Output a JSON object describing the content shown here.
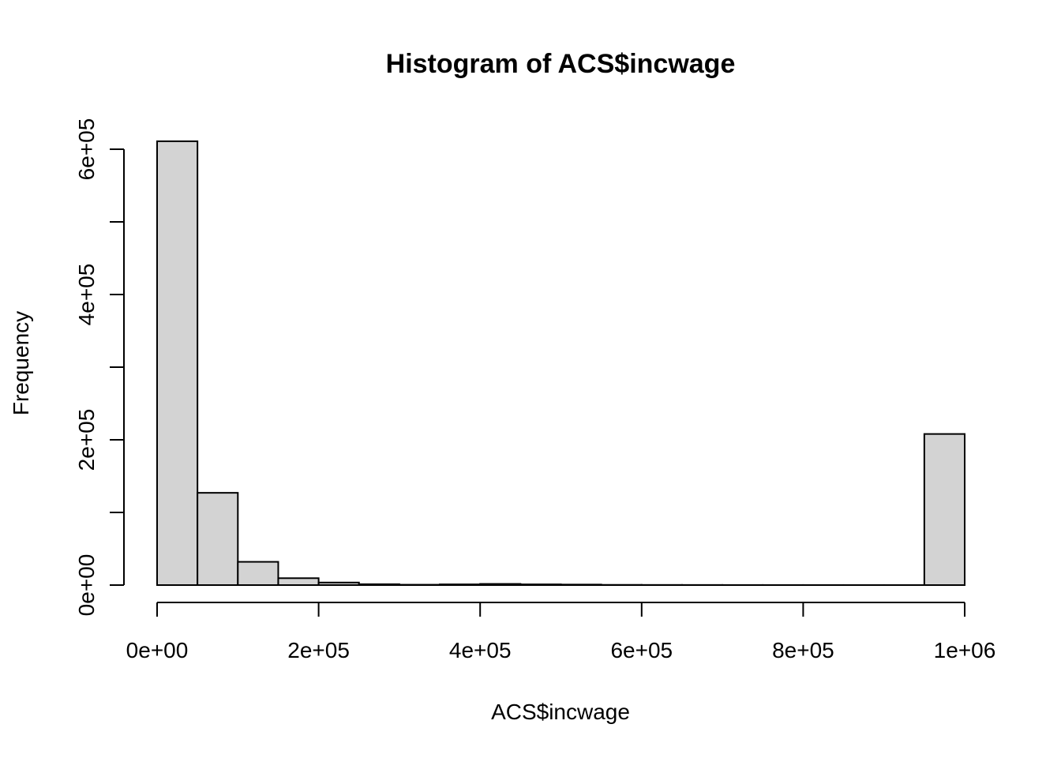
{
  "chart_data": {
    "type": "bar",
    "title": "Histogram of ACS$incwage",
    "xlabel": "ACS$incwage",
    "ylabel": "Frequency",
    "xlim": [
      0,
      1000000
    ],
    "ylim": [
      0,
      600000
    ],
    "bin_width": 50000,
    "x_ticks": [
      {
        "value": 0,
        "label": "0e+00"
      },
      {
        "value": 200000,
        "label": "2e+05"
      },
      {
        "value": 400000,
        "label": "4e+05"
      },
      {
        "value": 600000,
        "label": "6e+05"
      },
      {
        "value": 800000,
        "label": "8e+05"
      },
      {
        "value": 1000000,
        "label": "1e+06"
      }
    ],
    "y_ticks": [
      {
        "value": 0,
        "label": "0e+00"
      },
      {
        "value": 100000,
        "label": ""
      },
      {
        "value": 200000,
        "label": "2e+05"
      },
      {
        "value": 300000,
        "label": ""
      },
      {
        "value": 400000,
        "label": "4e+05"
      },
      {
        "value": 500000,
        "label": ""
      },
      {
        "value": 600000,
        "label": "6e+05"
      }
    ],
    "bins": [
      {
        "start": 0,
        "end": 50000,
        "count": 611000
      },
      {
        "start": 50000,
        "end": 100000,
        "count": 127000
      },
      {
        "start": 100000,
        "end": 150000,
        "count": 32000
      },
      {
        "start": 150000,
        "end": 200000,
        "count": 9500
      },
      {
        "start": 200000,
        "end": 250000,
        "count": 3500
      },
      {
        "start": 250000,
        "end": 300000,
        "count": 1200
      },
      {
        "start": 300000,
        "end": 350000,
        "count": 500
      },
      {
        "start": 350000,
        "end": 400000,
        "count": 1000
      },
      {
        "start": 400000,
        "end": 450000,
        "count": 1600
      },
      {
        "start": 450000,
        "end": 500000,
        "count": 1000
      },
      {
        "start": 500000,
        "end": 550000,
        "count": 700
      },
      {
        "start": 550000,
        "end": 600000,
        "count": 300
      },
      {
        "start": 600000,
        "end": 650000,
        "count": 200
      },
      {
        "start": 650000,
        "end": 700000,
        "count": 150
      },
      {
        "start": 700000,
        "end": 750000,
        "count": 100
      },
      {
        "start": 750000,
        "end": 800000,
        "count": 80
      },
      {
        "start": 800000,
        "end": 850000,
        "count": 60
      },
      {
        "start": 850000,
        "end": 900000,
        "count": 50
      },
      {
        "start": 900000,
        "end": 950000,
        "count": 40
      },
      {
        "start": 950000,
        "end": 1000000,
        "count": 208000
      }
    ],
    "bar_fill": "#d3d3d3",
    "bar_stroke": "#000000",
    "grid": false,
    "legend": "none"
  }
}
